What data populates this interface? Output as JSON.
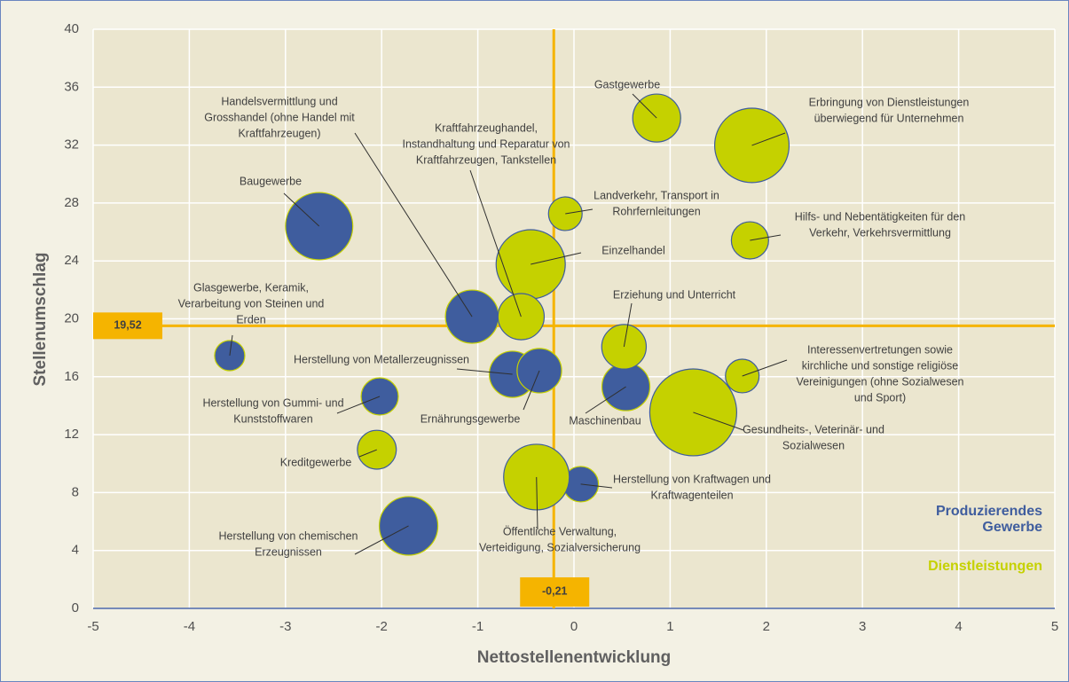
{
  "chart_data": {
    "type": "bubble",
    "x_label": "Nettostellenentwicklung",
    "y_label": "Stellenumschlag",
    "xlim": [
      -5,
      5
    ],
    "xticks": [
      -5,
      -4,
      -3,
      -2,
      -1,
      0,
      1,
      2,
      3,
      4,
      5
    ],
    "ylim": [
      0,
      40
    ],
    "yticks": [
      0,
      4,
      8,
      12,
      16,
      20,
      24,
      28,
      32,
      36,
      40
    ],
    "grid": true,
    "legend": "lower right",
    "reference_lines": {
      "y": {
        "value": 19.52,
        "label": "19,52"
      },
      "x": {
        "value": -0.21,
        "label": "-0,21"
      },
      "color": "#f5b400"
    },
    "series": [
      {
        "name": "Produzierendes Gewerbe",
        "color": "#3f5d9e",
        "x": [
          -2.65,
          -1.06,
          -3.58,
          -0.64,
          -0.36,
          0.54,
          -2.02,
          0.07,
          -1.72
        ],
        "values": [
          26.4,
          20.15,
          17.46,
          16.17,
          16.42,
          15.31,
          14.64,
          8.58,
          5.7
        ],
        "sizes": [
          14.4,
          9,
          2.9,
          6.8,
          6.3,
          7.3,
          4.4,
          4,
          10.9
        ],
        "labels": [
          [
            "Baugewerbe"
          ],
          [
            "Handelsvermittlung und",
            "Grosshandel (ohne Handel mit",
            "Kraftfahrzeugen)"
          ],
          [
            "Glasgewerbe, Keramik,",
            "Verarbeitung von Steinen und",
            "Erden"
          ],
          [
            "Herstellung von Metallerzeugnissen"
          ],
          [
            "Ernährungsgewerbe"
          ],
          [
            "Maschinenbau"
          ],
          [
            "Herstellung von Gummi- und",
            "Kunststoffwaren"
          ],
          [
            "Herstellung von Kraftwagen und",
            "Kraftwagenteilen"
          ],
          [
            "Herstellung von chemischen",
            "Erzeugnissen"
          ]
        ]
      },
      {
        "name": "Dienstleistungen",
        "color": "#c5d100",
        "x": [
          0.86,
          1.85,
          -0.09,
          1.83,
          -0.45,
          -0.55,
          0.52,
          1.75,
          1.24,
          -2.05,
          -0.39
        ],
        "values": [
          33.87,
          31.98,
          27.26,
          25.42,
          23.77,
          20.15,
          18.07,
          16.05,
          13.54,
          10.96,
          9.07
        ],
        "sizes": [
          7.3,
          17.6,
          3.6,
          4.4,
          15.2,
          6.8,
          6.3,
          3.6,
          24,
          4.8,
          13.7
        ],
        "labels": [
          [
            "Gastgewerbe"
          ],
          [
            "Erbringung von Dienstleistungen",
            "überwiegend für Unternehmen"
          ],
          [
            "Landverkehr, Transport in",
            "Rohrfernleitungen"
          ],
          [
            "Hilfs- und Nebentätigkeiten für den",
            "Verkehr, Verkehrsvermittlung"
          ],
          [
            "Einzelhandel"
          ],
          [
            "Kraftfahrzeughandel,",
            "Instandhaltung und Reparatur von",
            "Kraftfahrzeugen, Tankstellen"
          ],
          [
            "Erziehung und Unterricht"
          ],
          [
            "Interessenvertretungen sowie",
            "kirchliche und sonstige religiöse",
            "Vereinigungen (ohne Sozialwesen",
            "und Sport)"
          ],
          [
            "Gesundheits-, Veterinär- und",
            "Sozialwesen"
          ],
          [
            "Kreditgewerbe"
          ],
          [
            "Öffentliche Verwaltung,",
            "Verteidigung, Sozialversicherung"
          ]
        ]
      }
    ]
  }
}
